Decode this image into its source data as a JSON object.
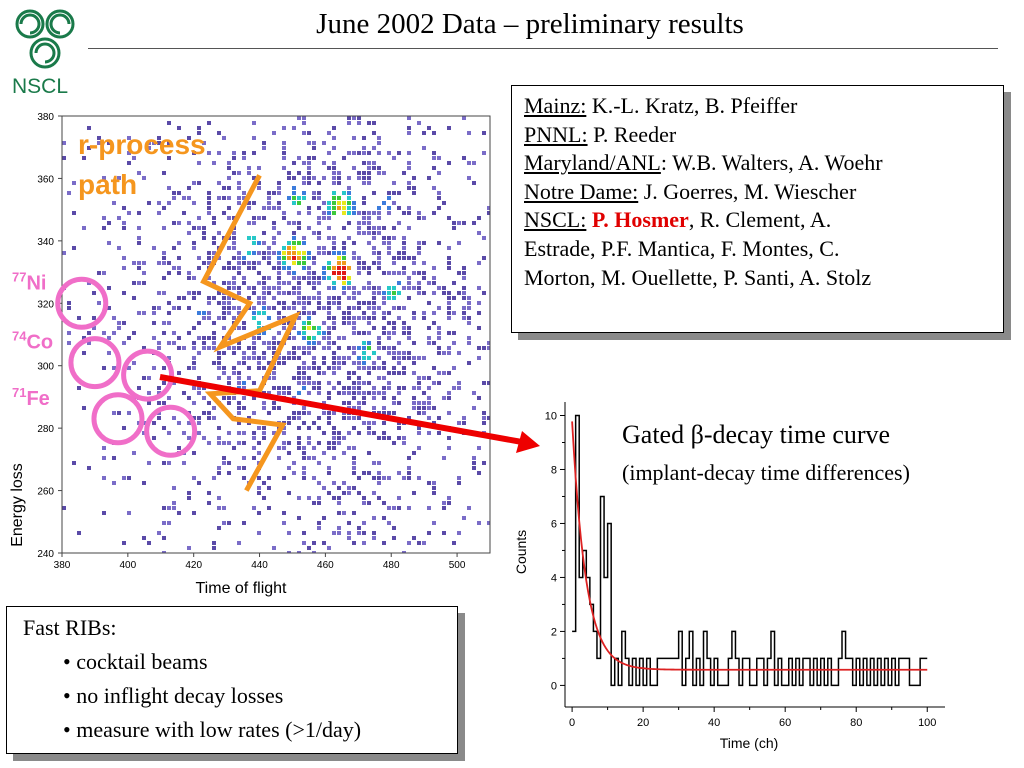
{
  "slide": {
    "title": "June 2002 Data – preliminary results"
  },
  "logo": {
    "text": "NSCL",
    "color": "#1a7a4a"
  },
  "collaborators": [
    {
      "institution": "Mainz:",
      "names": " K.-L. Kratz, B. Pfeiffer"
    },
    {
      "institution": "PNNL:",
      "names": " P. Reeder"
    },
    {
      "institution": "Maryland/ANL",
      "names": ": W.B. Walters, A. Woehr"
    },
    {
      "institution": "Notre Dame:",
      "names": " J. Goerres, M. Wiescher"
    }
  ],
  "nscl_line": {
    "institution": "NSCL:",
    "highlight": "P. Hosmer",
    "rest1": ", R. Clement, A.",
    "rest2": "Estrade, P.F. Mantica, F. Montes, C.",
    "rest3": "Morton, M. Ouellette, P. Santi, A. Stolz"
  },
  "ribs": {
    "heading": "Fast RIBs:",
    "items": [
      "• cocktail beams",
      "• no inflight decay losses",
      "• measure with low rates (>1/day)"
    ]
  },
  "decay_label": {
    "title_prefix": "Gated ",
    "beta": "β",
    "title_suffix": "-decay time curve",
    "subtitle": "(implant-decay time differences)"
  },
  "colors": {
    "orange": "#f5961e",
    "magenta": "#f06ec8",
    "red_arrow": "#ee0000",
    "fit": "#dd2222",
    "hosmer": "#e00000"
  },
  "chart_data": [
    {
      "type": "heatmap",
      "title": "",
      "xlabel": "Time of flight",
      "ylabel": "Energy loss",
      "xlim": [
        380,
        510
      ],
      "ylim": [
        240,
        380
      ],
      "xticks": [
        "380",
        "400",
        "420",
        "440",
        "460",
        "480",
        "500"
      ],
      "yticks": [
        "240",
        "260",
        "280",
        "300",
        "320",
        "340",
        "360",
        "380"
      ],
      "annotation": "r-process path",
      "annotation_line1": "r-process",
      "annotation_line2": "path",
      "clusters": [
        {
          "x": 451,
          "y": 354,
          "intensity": 0.5
        },
        {
          "x": 464,
          "y": 352,
          "intensity": 0.75
        },
        {
          "x": 477,
          "y": 352,
          "intensity": 0.4
        },
        {
          "x": 436,
          "y": 339,
          "intensity": 0.55
        },
        {
          "x": 450,
          "y": 336,
          "intensity": 0.9
        },
        {
          "x": 464,
          "y": 331,
          "intensity": 1.0
        },
        {
          "x": 480,
          "y": 324,
          "intensity": 0.5
        },
        {
          "x": 422,
          "y": 319,
          "intensity": 0.35
        },
        {
          "x": 440,
          "y": 315,
          "intensity": 0.55
        },
        {
          "x": 455,
          "y": 312,
          "intensity": 0.6
        },
        {
          "x": 472,
          "y": 305,
          "intensity": 0.5
        },
        {
          "x": 488,
          "y": 298,
          "intensity": 0.3
        },
        {
          "x": 434,
          "y": 295,
          "intensity": 0.3
        },
        {
          "x": 452,
          "y": 292,
          "intensity": 0.35
        }
      ],
      "isotopes": [
        {
          "label": "Ni",
          "mass": "77",
          "circles": [
            {
              "x": 386,
              "y": 320
            }
          ]
        },
        {
          "label": "Co",
          "mass": "74",
          "circles": [
            {
              "x": 390,
              "y": 301
            },
            {
              "x": 406,
              "y": 297
            }
          ]
        },
        {
          "label": "Fe",
          "mass": "71",
          "circles": [
            {
              "x": 397,
              "y": 283
            },
            {
              "x": 413,
              "y": 279
            }
          ]
        }
      ],
      "path_lines": [
        [
          [
            440,
            361
          ],
          [
            423,
            327
          ],
          [
            437,
            320
          ],
          [
            428,
            306
          ],
          [
            451,
            316
          ],
          [
            440,
            292
          ],
          [
            425,
            291
          ],
          [
            432,
            283
          ],
          [
            447,
            281
          ],
          [
            436,
            260
          ]
        ]
      ]
    },
    {
      "type": "line",
      "title": "",
      "xlabel": "Time (ch)",
      "ylabel": "Counts",
      "xlim": [
        -2,
        105
      ],
      "ylim": [
        -0.8,
        10.5
      ],
      "xticks": [
        "0",
        "20",
        "40",
        "60",
        "80",
        "100"
      ],
      "yticks": [
        "0",
        "2",
        "4",
        "6",
        "8",
        "10"
      ],
      "series": [
        {
          "values_x": [
            0,
            1,
            2,
            3,
            4,
            5,
            6,
            7,
            8,
            9,
            10,
            11,
            12,
            13,
            14,
            15,
            16,
            17,
            18,
            19,
            20,
            21,
            22,
            23,
            24,
            25,
            26,
            27,
            28,
            29,
            30,
            31,
            32,
            33,
            34,
            35,
            36,
            37,
            38,
            39,
            40,
            41,
            42,
            43,
            44,
            45,
            46,
            47,
            48,
            49,
            50,
            51,
            52,
            53,
            54,
            55,
            56,
            57,
            58,
            59,
            60,
            61,
            62,
            63,
            64,
            65,
            66,
            67,
            68,
            69,
            70,
            71,
            72,
            73,
            74,
            75,
            76,
            77,
            78,
            79,
            80,
            81,
            82,
            83,
            84,
            85,
            86,
            87,
            88,
            89,
            90,
            91,
            92,
            93,
            94,
            95,
            96,
            97,
            98,
            99
          ],
          "values_y": [
            2,
            10,
            4,
            5,
            4,
            3,
            2,
            1,
            7,
            4,
            6,
            0,
            1,
            0,
            2,
            1,
            0,
            1,
            0,
            1,
            0,
            1,
            0,
            0,
            1,
            1,
            1,
            1,
            1,
            1,
            2,
            0,
            1,
            2,
            0,
            1,
            0,
            2,
            1,
            0,
            1,
            0,
            0,
            0,
            1,
            2,
            1,
            0,
            1,
            1,
            0,
            0,
            1,
            1,
            0,
            1,
            2,
            0,
            1,
            0,
            0,
            1,
            0,
            1,
            0,
            1,
            1,
            0,
            1,
            0,
            1,
            0,
            1,
            0,
            0,
            1,
            2,
            1,
            1,
            0,
            1,
            0,
            1,
            0,
            1,
            0,
            1,
            0,
            1,
            0,
            1,
            0,
            1,
            1,
            1,
            0,
            0,
            0,
            1,
            1
          ]
        },
        {
          "fit": {
            "A": 9.2,
            "tau": 3.9,
            "c": 0.58,
            "from": 0,
            "to": 100
          }
        }
      ]
    }
  ]
}
